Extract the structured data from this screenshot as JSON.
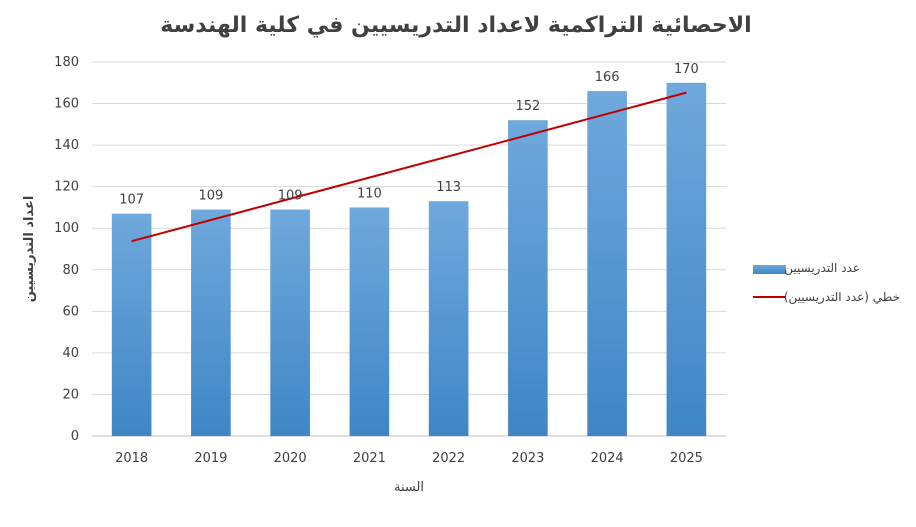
{
  "chart_data": {
    "type": "bar",
    "title": "الاحصائية التراكمية لاعداد التدريسيين في كلية الهندسة",
    "xlabel": "السنة",
    "ylabel": "اعداد التدريسيين",
    "categories": [
      "2018",
      "2019",
      "2020",
      "2021",
      "2022",
      "2023",
      "2024",
      "2025"
    ],
    "series": [
      {
        "name": "عدد التدريسيين",
        "values": [
          107,
          109,
          109,
          110,
          113,
          152,
          166,
          170
        ],
        "color": "#5b9bd5"
      }
    ],
    "trendline": {
      "name": "خطي (عدد التدريسيين)",
      "type": "linear",
      "color": "#c00000"
    },
    "ylim": [
      0,
      180
    ],
    "yticks": [
      0,
      20,
      40,
      60,
      80,
      100,
      120,
      140,
      160,
      180
    ],
    "grid": true,
    "legend_position": "right"
  }
}
